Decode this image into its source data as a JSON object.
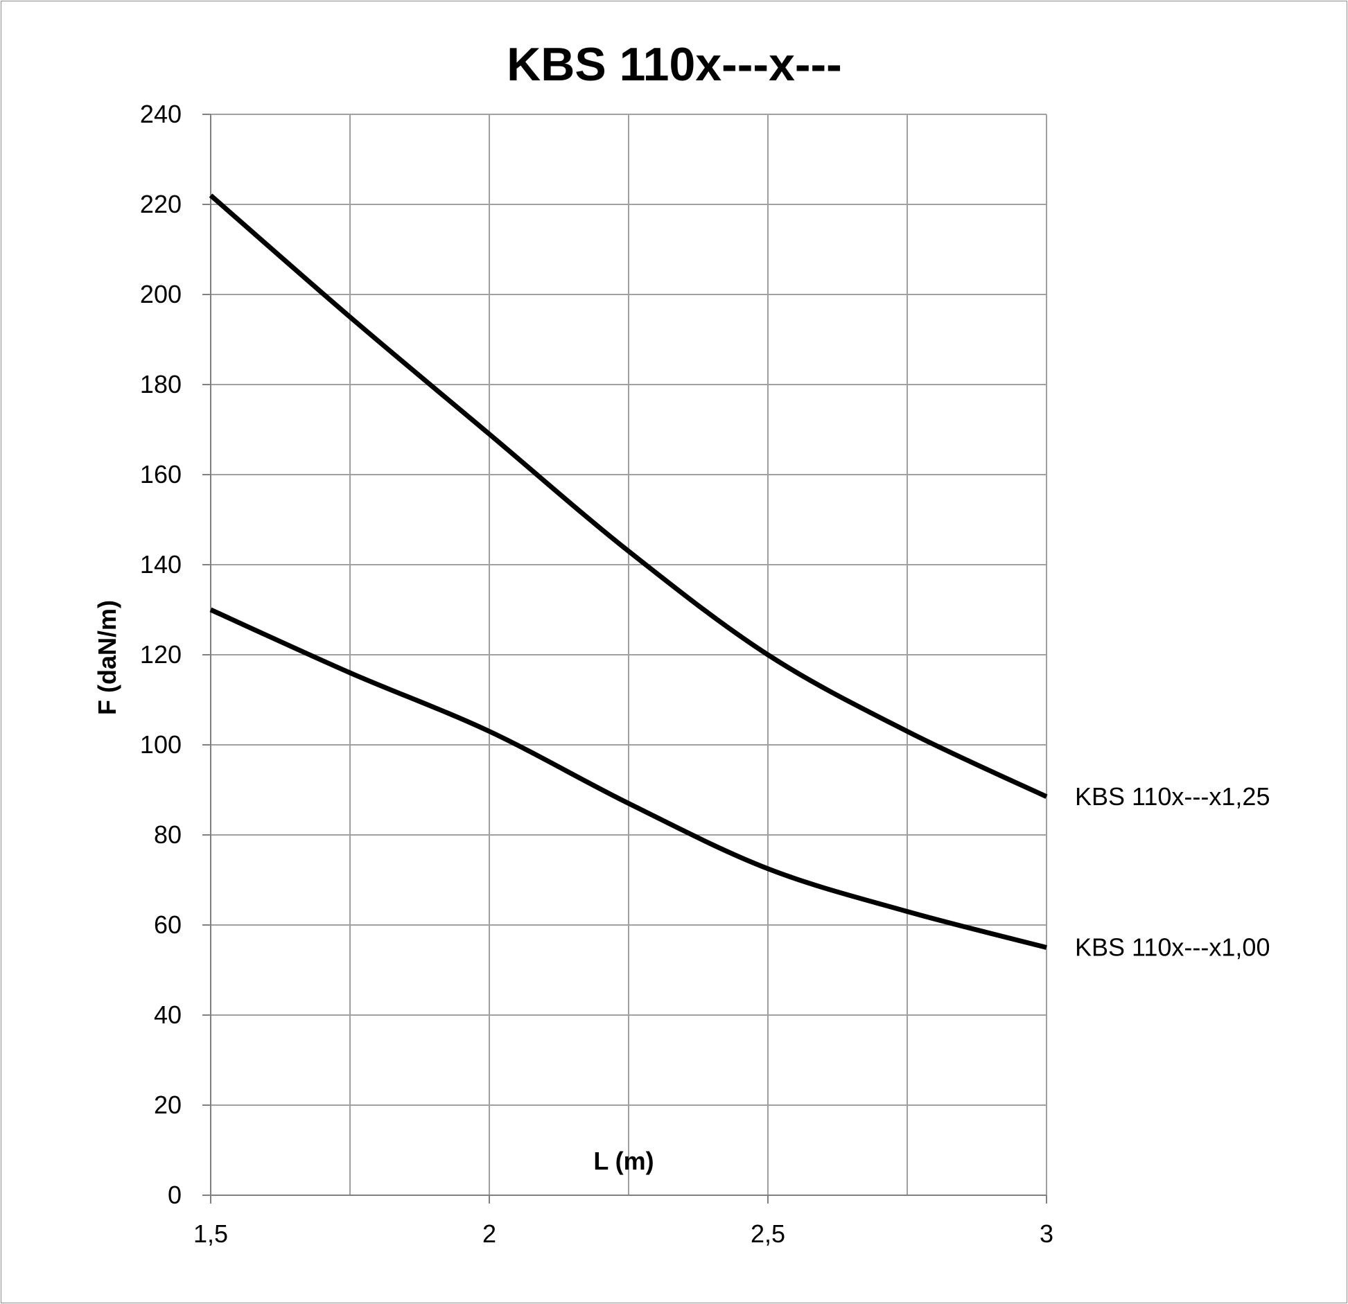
{
  "chart_data": {
    "type": "line",
    "title": "KBS 110x---x---",
    "xlabel": "L (m)",
    "ylabel": "F (daN/m)",
    "xlim": [
      1.5,
      3
    ],
    "ylim": [
      0,
      240
    ],
    "x_ticks": [
      "1,5",
      "2",
      "2,5",
      "3"
    ],
    "x_tick_values": [
      1.5,
      2,
      2.5,
      3
    ],
    "x_minor_grid": [
      1.75,
      2.25,
      2.75
    ],
    "y_ticks": [
      0,
      20,
      40,
      60,
      80,
      100,
      120,
      140,
      160,
      180,
      200,
      220,
      240
    ],
    "grid": true,
    "legend": "inline-right",
    "x": [
      1.5,
      1.75,
      2,
      2.25,
      2.5,
      2.75,
      3
    ],
    "series": [
      {
        "name": "KBS 110x---x1,25",
        "values": [
          222,
          195,
          169,
          143,
          120,
          103,
          88.5
        ],
        "color": "#000000"
      },
      {
        "name": "KBS 110x---x1,00",
        "values": [
          130,
          116,
          103,
          87,
          72.5,
          63,
          55
        ],
        "color": "#000000"
      }
    ]
  }
}
